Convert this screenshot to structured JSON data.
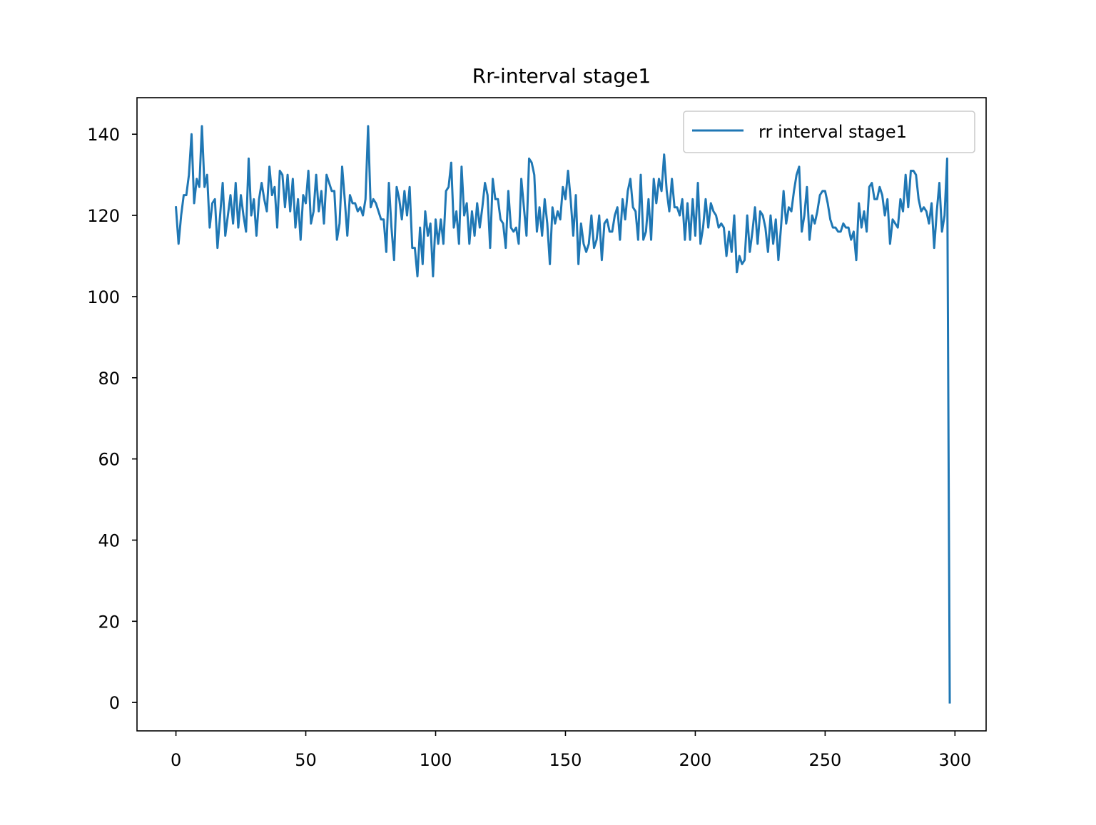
{
  "colors": {
    "series": "#1f77b4",
    "axis": "#000000",
    "legend_border": "#cccccc",
    "background": "#ffffff"
  },
  "chart_data": {
    "type": "line",
    "title": "Rr-interval stage1",
    "xlabel": "",
    "ylabel": "",
    "xlim": [
      -15,
      312
    ],
    "ylim": [
      -7,
      149
    ],
    "xticks": [
      0,
      50,
      100,
      150,
      200,
      250,
      300
    ],
    "yticks": [
      0,
      20,
      40,
      60,
      80,
      100,
      120,
      140
    ],
    "grid": false,
    "legend": {
      "position": "top-right",
      "entries": [
        "rr interval stage1"
      ]
    },
    "series": [
      {
        "name": "rr interval stage1",
        "color": "#1f77b4",
        "values": [
          122,
          113,
          120,
          125,
          125,
          130,
          140,
          123,
          129,
          127,
          142,
          127,
          130,
          117,
          123,
          124,
          112,
          120,
          128,
          115,
          120,
          125,
          118,
          128,
          117,
          125,
          120,
          116,
          134,
          120,
          124,
          115,
          124,
          128,
          124,
          121,
          132,
          125,
          127,
          117,
          131,
          130,
          122,
          130,
          121,
          129,
          117,
          124,
          114,
          125,
          123,
          131,
          118,
          121,
          130,
          121,
          126,
          118,
          130,
          128,
          126,
          126,
          114,
          118,
          132,
          124,
          115,
          125,
          123,
          123,
          121,
          122,
          120,
          124,
          142,
          122,
          124,
          123,
          121,
          119,
          119,
          111,
          128,
          117,
          109,
          127,
          124,
          119,
          126,
          120,
          127,
          112,
          112,
          105,
          117,
          108,
          121,
          115,
          118,
          105,
          119,
          113,
          119,
          113,
          126,
          127,
          133,
          117,
          121,
          113,
          132,
          120,
          123,
          113,
          121,
          115,
          123,
          117,
          122,
          128,
          125,
          112,
          129,
          124,
          124,
          119,
          118,
          112,
          126,
          117,
          116,
          117,
          113,
          129,
          122,
          115,
          134,
          133,
          130,
          116,
          122,
          115,
          124,
          118,
          108,
          122,
          118,
          121,
          119,
          127,
          124,
          131,
          124,
          115,
          125,
          108,
          118,
          113,
          111,
          113,
          120,
          112,
          114,
          120,
          109,
          118,
          119,
          116,
          116,
          120,
          122,
          114,
          124,
          119,
          126,
          129,
          122,
          121,
          114,
          130,
          114,
          116,
          124,
          114,
          129,
          123,
          129,
          126,
          135,
          126,
          121,
          129,
          122,
          122,
          120,
          124,
          114,
          123,
          114,
          124,
          115,
          128,
          113,
          117,
          124,
          117,
          123,
          121,
          120,
          117,
          118,
          117,
          110,
          116,
          111,
          120,
          106,
          110,
          108,
          109,
          120,
          111,
          116,
          122,
          113,
          121,
          120,
          117,
          111,
          120,
          113,
          119,
          109,
          117,
          126,
          118,
          122,
          121,
          126,
          130,
          132,
          116,
          120,
          127,
          114,
          120,
          118,
          121,
          125,
          126,
          126,
          123,
          119,
          117,
          117,
          116,
          116,
          118,
          117,
          117,
          114,
          116,
          109,
          123,
          117,
          121,
          116,
          127,
          128,
          124,
          124,
          127,
          125,
          120,
          124,
          113,
          119,
          118,
          117,
          124,
          121,
          130,
          122,
          131,
          131,
          130,
          124,
          121,
          122,
          121,
          118,
          123,
          112,
          121,
          128,
          116,
          120,
          134,
          0
        ]
      }
    ]
  }
}
